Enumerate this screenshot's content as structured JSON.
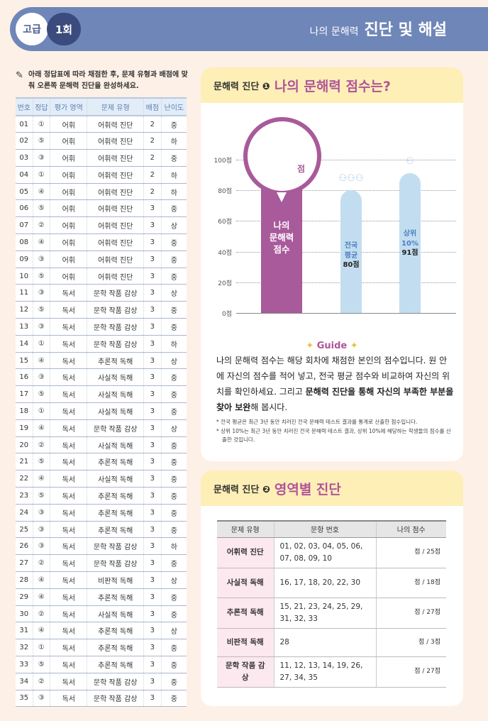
{
  "header": {
    "level": "고급",
    "round": "1회",
    "subtitle": "나의 문해력",
    "title": "진단 및 해설"
  },
  "instruction": "아래 정답표에 따라 채점한 후, 문제 유형과 배점에 맞춰 오른쪽 문해력 진단을 완성하세요.",
  "answer_table": {
    "columns": [
      "번호",
      "정답",
      "평가 영역",
      "문제 유형",
      "배점",
      "난이도"
    ],
    "rows": [
      [
        "01",
        "①",
        "어휘",
        "어휘력 진단",
        "2",
        "중"
      ],
      [
        "02",
        "⑤",
        "어휘",
        "어휘력 진단",
        "2",
        "하"
      ],
      [
        "03",
        "③",
        "어휘",
        "어휘력 진단",
        "2",
        "중"
      ],
      [
        "04",
        "①",
        "어휘",
        "어휘력 진단",
        "2",
        "하"
      ],
      [
        "05",
        "④",
        "어휘",
        "어휘력 진단",
        "2",
        "하"
      ],
      [
        "06",
        "⑤",
        "어휘",
        "어휘력 진단",
        "3",
        "중"
      ],
      [
        "07",
        "②",
        "어휘",
        "어휘력 진단",
        "3",
        "상"
      ],
      [
        "08",
        "④",
        "어휘",
        "어휘력 진단",
        "3",
        "중"
      ],
      [
        "09",
        "③",
        "어휘",
        "어휘력 진단",
        "3",
        "중"
      ],
      [
        "10",
        "⑤",
        "어휘",
        "어휘력 진단",
        "3",
        "중"
      ],
      [
        "11",
        "③",
        "독서",
        "문학 작품 감상",
        "3",
        "상"
      ],
      [
        "12",
        "⑤",
        "독서",
        "문학 작품 감상",
        "3",
        "중"
      ],
      [
        "13",
        "③",
        "독서",
        "문학 작품 감상",
        "3",
        "중"
      ],
      [
        "14",
        "①",
        "독서",
        "문학 작품 감상",
        "3",
        "하"
      ],
      [
        "15",
        "④",
        "독서",
        "추론적 독해",
        "3",
        "상"
      ],
      [
        "16",
        "③",
        "독서",
        "사실적 독해",
        "3",
        "중"
      ],
      [
        "17",
        "⑤",
        "독서",
        "사실적 독해",
        "3",
        "중"
      ],
      [
        "18",
        "①",
        "독서",
        "사실적 독해",
        "3",
        "중"
      ],
      [
        "19",
        "④",
        "독서",
        "문학 작품 감상",
        "3",
        "상"
      ],
      [
        "20",
        "②",
        "독서",
        "사실적 독해",
        "3",
        "중"
      ],
      [
        "21",
        "⑤",
        "독서",
        "추론적 독해",
        "3",
        "중"
      ],
      [
        "22",
        "④",
        "독서",
        "사실적 독해",
        "3",
        "중"
      ],
      [
        "23",
        "⑤",
        "독서",
        "추론적 독해",
        "3",
        "중"
      ],
      [
        "24",
        "③",
        "독서",
        "추론적 독해",
        "3",
        "중"
      ],
      [
        "25",
        "③",
        "독서",
        "추론적 독해",
        "3",
        "중"
      ],
      [
        "26",
        "③",
        "독서",
        "문학 작품 감상",
        "3",
        "하"
      ],
      [
        "27",
        "②",
        "독서",
        "문학 작품 감상",
        "3",
        "중"
      ],
      [
        "28",
        "④",
        "독서",
        "비판적 독해",
        "3",
        "상"
      ],
      [
        "29",
        "④",
        "독서",
        "추론적 독해",
        "3",
        "중"
      ],
      [
        "30",
        "②",
        "독서",
        "사실적 독해",
        "3",
        "중"
      ],
      [
        "31",
        "④",
        "독서",
        "추론적 독해",
        "3",
        "상"
      ],
      [
        "32",
        "①",
        "독서",
        "추론적 독해",
        "3",
        "중"
      ],
      [
        "33",
        "⑤",
        "독서",
        "추론적 독해",
        "3",
        "중"
      ],
      [
        "34",
        "②",
        "독서",
        "문학 작품 감상",
        "3",
        "중"
      ],
      [
        "35",
        "③",
        "독서",
        "문학 작품 감상",
        "3",
        "중"
      ]
    ]
  },
  "section1": {
    "kicker": "문해력 진단 ❶",
    "title": "나의 문해력 점수는?",
    "score_unit": "점",
    "guide": "Guide",
    "para": [
      "나의 문해력 점수는 해당 회차에 채점한 본인의 점수입니다. 원 안에 자신의 점수를 적어 넣고, 전국 평균 점수와 비교하여 자신의 위치를 확인하세요. 그리고 ",
      "문해력 진단을 통해 자신의 부족한 부분을 찾아 보완",
      "해 봅시다."
    ],
    "notes": [
      "* 전국 평균은 최근 3년 동안 치러진 전국 문해력 테스트 결과를 통계로 산출한 점수입니다.",
      "* 상위 10%는 최근 3년 동안 치러진 전국 문해력 테스트 결과, 상위 10%에 해당하는 학생들의 점수를 산출한 것입니다."
    ]
  },
  "chart_data": {
    "type": "bar",
    "yticks": [
      "0점",
      "20점",
      "40점",
      "60점",
      "80점",
      "100점"
    ],
    "ylim": [
      0,
      100
    ],
    "series": [
      {
        "name": "나의 문해력 점수",
        "label": [
          "나의",
          "문해력",
          "점수"
        ],
        "value": null,
        "color": "#a85a9a"
      },
      {
        "name": "전국 평균",
        "label": [
          "전국",
          "평균"
        ],
        "value": 80,
        "value_label": "80점",
        "color": "#c3ddf0"
      },
      {
        "name": "상위 10%",
        "label": [
          "상위",
          "10%"
        ],
        "value": 91,
        "value_label": "91점",
        "color": "#c3ddf0"
      }
    ]
  },
  "section2": {
    "kicker": "문해력 진단 ❷",
    "title": "영역별 진단",
    "columns": [
      "문제 유형",
      "문항 번호",
      "나의 점수"
    ],
    "rows": [
      {
        "type": "어휘력 진단",
        "items": "01, 02, 03, 04, 05, 06, 07, 08, 09, 10",
        "score": "점 / 25점"
      },
      {
        "type": "사실적 독해",
        "items": "16, 17, 18, 20, 22, 30",
        "score": "점 / 18점"
      },
      {
        "type": "추론적 독해",
        "items": "15, 21, 23, 24, 25, 29, 31, 32, 33",
        "score": "점 / 27점"
      },
      {
        "type": "비판적 독해",
        "items": "28",
        "score": "점 / 3점"
      },
      {
        "type": "문학 작품 감상",
        "items": "11, 12, 13, 14, 19, 26, 27, 34, 35",
        "score": "점 / 27점"
      }
    ]
  }
}
